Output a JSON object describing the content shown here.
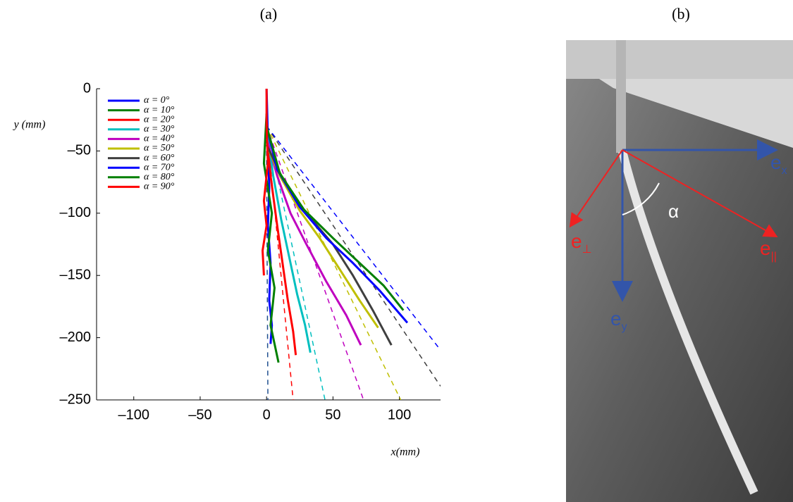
{
  "chart_data": {
    "type": "line",
    "title": "(a)",
    "x_label": "x(mm)",
    "y_label": "y (mm)",
    "xlim": [
      -128,
      131
    ],
    "ylim": [
      -250,
      0
    ],
    "xticks": [
      {
        "value": -100,
        "label": "–100"
      },
      {
        "value": -50,
        "label": "–50"
      },
      0,
      50,
      100
    ],
    "yticks": [
      0,
      {
        "value": -50,
        "label": "–50"
      },
      {
        "value": -100,
        "label": "–100"
      },
      {
        "value": -150,
        "label": "–150"
      },
      {
        "value": -200,
        "label": "–200"
      },
      {
        "value": -250,
        "label": "–250"
      }
    ],
    "legend": "upper left",
    "series": [
      {
        "name": "α = 0°",
        "color": "#0000ff",
        "x": [
          0,
          1,
          2,
          1,
          3,
          2,
          4,
          3
        ],
        "values": [
          0,
          -40,
          -80,
          -110,
          -140,
          -170,
          -190,
          -205
        ]
      },
      {
        "name": "α = 10°",
        "color": "#007f00",
        "x": [
          0,
          -2,
          4,
          1,
          6,
          3,
          9
        ],
        "values": [
          -20,
          -60,
          -100,
          -130,
          -160,
          -190,
          -220
        ]
      },
      {
        "name": "α = 20°",
        "color": "#ff0000",
        "x": [
          0,
          3,
          8,
          12,
          16,
          20,
          22
        ],
        "values": [
          -25,
          -70,
          -110,
          -140,
          -170,
          -195,
          -214
        ]
      },
      {
        "name": "α = 30°",
        "color": "#00bfbf",
        "x": [
          0,
          5,
          11,
          17,
          23,
          29,
          33
        ],
        "values": [
          -30,
          -70,
          -105,
          -135,
          -165,
          -190,
          -212
        ]
      },
      {
        "name": "α = 40°",
        "color": "#bf00bf",
        "x": [
          0,
          8,
          18,
          30,
          45,
          60,
          71
        ],
        "values": [
          -40,
          -70,
          -100,
          -125,
          -155,
          -182,
          -206
        ]
      },
      {
        "name": "α = 50°",
        "color": "#bfbf00",
        "x": [
          0,
          10,
          25,
          40,
          55,
          70,
          84
        ],
        "values": [
          -45,
          -70,
          -98,
          -120,
          -145,
          -170,
          -192
        ]
      },
      {
        "name": "α = 60°",
        "color": "#3f3f3f",
        "x": [
          0,
          12,
          30,
          50,
          65,
          80,
          94
        ],
        "values": [
          -45,
          -72,
          -100,
          -125,
          -150,
          -178,
          -206
        ]
      },
      {
        "name": "α = 70°",
        "color": "#0000ff",
        "x": [
          0,
          8,
          25,
          45,
          65,
          85,
          106
        ],
        "values": [
          -30,
          -65,
          -95,
          -120,
          -140,
          -162,
          -188
        ]
      },
      {
        "name": "α = 80°",
        "color": "#007f00",
        "x": [
          0,
          10,
          28,
          50,
          70,
          88,
          103
        ],
        "values": [
          -30,
          -68,
          -97,
          -120,
          -140,
          -158,
          -178
        ]
      },
      {
        "name": "α = 90°",
        "color": "#ff0000",
        "x": [
          0,
          0,
          1,
          -2,
          0,
          -3,
          -2
        ],
        "values": [
          0,
          -30,
          -60,
          -90,
          -110,
          -130,
          -150
        ]
      }
    ],
    "fits": [
      {
        "color": "#1f4f8f",
        "x": [
          0,
          1
        ],
        "values": [
          -50,
          -250
        ]
      },
      {
        "color": "#ff0000",
        "x": [
          0,
          20
        ],
        "values": [
          -30,
          -250
        ]
      },
      {
        "color": "#00bfbf",
        "x": [
          0,
          44
        ],
        "values": [
          -30,
          -250
        ]
      },
      {
        "color": "#bf00bf",
        "x": [
          0,
          73
        ],
        "values": [
          -30,
          -250
        ]
      },
      {
        "color": "#bfbf00",
        "x": [
          0,
          101
        ],
        "values": [
          -30,
          -250
        ]
      },
      {
        "color": "#3f3f3f",
        "x": [
          0,
          131
        ],
        "values": [
          -30,
          -239
        ]
      },
      {
        "color": "#0000ff",
        "x": [
          0,
          131
        ],
        "values": [
          -30,
          -210
        ]
      }
    ]
  },
  "photo": {
    "title": "(b)",
    "e_x": "e",
    "e_x_sub": "x",
    "e_y": "e",
    "e_y_sub": "y",
    "e_perp": "e",
    "e_perp_sub": "⊥",
    "e_par": "e",
    "e_par_sub": "||",
    "angle": "α"
  }
}
